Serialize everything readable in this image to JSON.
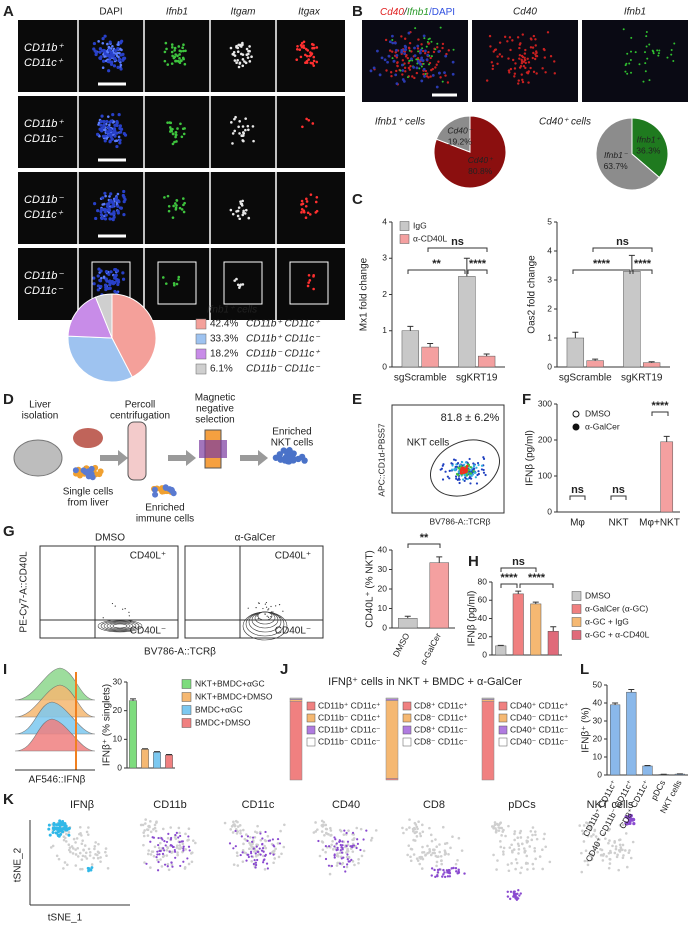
{
  "panel_labels": [
    "A",
    "B",
    "C",
    "D",
    "E",
    "F",
    "G",
    "H",
    "I",
    "J",
    "K",
    "L"
  ],
  "figA": {
    "channels": [
      "DAPI",
      "Ifnb1",
      "Itgam",
      "Itgax"
    ],
    "rows": [
      [
        "CD11b⁺",
        "CD11c⁺"
      ],
      [
        "CD11b⁺",
        "CD11c⁻"
      ],
      [
        "CD11b⁻",
        "CD11c⁺"
      ],
      [
        "CD11b⁻",
        "CD11c⁻"
      ]
    ]
  },
  "figB": {
    "merge": [
      "Cd40",
      "/",
      "Ifnb1",
      "/DAPI"
    ],
    "channels": [
      "Cd40",
      "Ifnb1"
    ]
  },
  "figD": {
    "steps": [
      [
        "Liver",
        "isolation"
      ],
      [
        "Percoll",
        "centrifugation"
      ],
      [
        "Magnetic",
        "negative",
        "selection"
      ],
      [
        "Enriched",
        "NKT cells"
      ]
    ],
    "notes": [
      [
        "Single cells",
        "from liver"
      ],
      [
        "Enriched",
        "immune cells"
      ]
    ]
  },
  "figE": {
    "percent": "81.8 ± 6.2%",
    "gate": "NKT cells",
    "ylabel": "APC::CD1d-PBS57",
    "xlabel": "BV786-A::TCRβ"
  },
  "figG": {
    "conditions": [
      "DMSO",
      "α-GalCer"
    ],
    "quadrants": [
      "CD40L⁺",
      "CD40L⁻"
    ],
    "ylabel": "PE-Cy7-A::CD40L",
    "xlabel": "BV786-A::TCRβ"
  },
  "figI": {
    "xlabel": "AF546::IFNβ"
  },
  "figK": {
    "titles": [
      "IFNβ",
      "CD11b",
      "CD11c",
      "CD40",
      "CD8",
      "pDCs",
      "NKT cells"
    ],
    "ylabel": "tSNE_2",
    "xlabel": "tSNE_1"
  },
  "chart_data": [
    {
      "type": "pie",
      "title": "Ifnb1⁺ cells",
      "categories": [
        "CD11b⁺ CD11c⁺",
        "CD11b⁺ CD11c⁻",
        "CD11b⁻ CD11c⁺",
        "CD11b⁻ CD11c⁻"
      ],
      "values": [
        42.4,
        33.3,
        18.2,
        6.1
      ],
      "value_labels": [
        "42.4%",
        "33.3%",
        "18.2%",
        "6.1%"
      ],
      "colors": [
        "#f4a09a",
        "#9ec3f0",
        "#c88ce8",
        "#cfcfcf"
      ],
      "legend": "right"
    },
    {
      "type": "pie",
      "title": "Ifnb1⁺ cells",
      "categories": [
        "Cd40⁺",
        "Cd40⁻"
      ],
      "values": [
        80.8,
        19.2
      ],
      "value_labels": [
        "80.8%",
        "19.2%"
      ],
      "colors": [
        "#8b0f0f",
        "#8c8c8c"
      ],
      "legend": "inside"
    },
    {
      "type": "pie",
      "title": "Cd40⁺ cells",
      "categories": [
        "Ifnb1⁺",
        "Ifnb1⁻"
      ],
      "values": [
        36.3,
        63.7
      ],
      "value_labels": [
        "36.3%",
        "63.7%"
      ],
      "colors": [
        "#1f7a1f",
        "#8c8c8c"
      ],
      "legend": "inside"
    },
    {
      "type": "bar",
      "ylabel": "Mx1 fold change",
      "categories": [
        "sgScramble",
        "sgKRT19"
      ],
      "series": [
        {
          "name": "IgG",
          "color": "#c8c8c8",
          "values": [
            1.0,
            2.5
          ],
          "errors": [
            0.12,
            0.5
          ]
        },
        {
          "name": "α-CD40L",
          "color": "#f4a0a0",
          "values": [
            0.55,
            0.3
          ],
          "errors": [
            0.1,
            0.06
          ]
        }
      ],
      "ylim": [
        0,
        4
      ],
      "yticks": [
        0,
        1,
        2,
        3,
        4
      ],
      "annotations": [
        "**",
        "****",
        "ns"
      ],
      "legend": "top-left"
    },
    {
      "type": "bar",
      "ylabel": "Oas2 fold change",
      "categories": [
        "sgScramble",
        "sgKRT19"
      ],
      "series": [
        {
          "name": "IgG",
          "color": "#c8c8c8",
          "values": [
            1.0,
            3.3
          ],
          "errors": [
            0.2,
            0.55
          ]
        },
        {
          "name": "α-CD40L",
          "color": "#f4a0a0",
          "values": [
            0.22,
            0.15
          ],
          "errors": [
            0.05,
            0.03
          ]
        }
      ],
      "ylim": [
        0,
        5
      ],
      "yticks": [
        0,
        1,
        2,
        3,
        4,
        5
      ],
      "annotations": [
        "****",
        "****",
        "ns"
      ]
    },
    {
      "type": "bar",
      "ylabel": "IFNβ (pg/ml)",
      "categories": [
        "Mφ",
        "NKT",
        "Mφ+NKT"
      ],
      "series": [
        {
          "name": "DMSO",
          "color": "#f4a0a0",
          "marker": "open",
          "values": [
            0,
            0,
            0
          ]
        },
        {
          "name": "α-GalCer",
          "color": "#f4a0a0",
          "marker": "filled",
          "values": [
            0,
            0,
            195
          ],
          "errors": [
            0,
            0,
            15
          ]
        }
      ],
      "ylim": [
        0,
        300
      ],
      "yticks": [
        0,
        100,
        200,
        300
      ],
      "annotations": [
        "ns",
        "ns",
        "****"
      ],
      "legend": "top-left"
    },
    {
      "type": "bar",
      "ylabel": "CD40L⁺ (% NKT)",
      "categories": [
        "DMSO",
        "α-GalCer"
      ],
      "values": [
        5,
        33.5
      ],
      "errors": [
        1,
        3
      ],
      "colors": [
        "#c8c8c8",
        "#f4a0a0"
      ],
      "ylim": [
        0,
        40
      ],
      "yticks": [
        0,
        10,
        20,
        30,
        40
      ],
      "annotations": [
        "**"
      ],
      "rotate_labels": true
    },
    {
      "type": "bar",
      "ylabel": "IFNβ (pg/ml)",
      "categories": [
        "DMSO",
        "α-GalCer (α-GC)",
        "α-GC + IgG",
        "α-GC + α-CD40L"
      ],
      "values": [
        10,
        67,
        56,
        26
      ],
      "errors": [
        0.5,
        3,
        2,
        5
      ],
      "colors": [
        "#c8c8c8",
        "#f08080",
        "#f5b872",
        "#e06a7a"
      ],
      "ylim": [
        0,
        80
      ],
      "yticks": [
        0,
        20,
        40,
        60,
        80
      ],
      "annotations": [
        "****",
        "****",
        "ns"
      ],
      "legend": "right"
    },
    {
      "type": "bar",
      "ylabel": "IFNβ⁺ (% singlets)",
      "categories": [
        "NKT+BMDC+αGC",
        "NKT+BMDC+DMSO",
        "BMDC+αGC",
        "BMDC+DMSO"
      ],
      "values": [
        23.5,
        6.5,
        5.5,
        4.5
      ],
      "errors": [
        0.6,
        0.2,
        0.2,
        0.2
      ],
      "colors": [
        "#7ddc7d",
        "#f5b872",
        "#7cc8f0",
        "#f08080"
      ],
      "ylim": [
        0,
        30
      ],
      "yticks": [
        0,
        10,
        20,
        30
      ],
      "legend": "right"
    },
    {
      "type": "stacked_bar",
      "title": "IFNβ⁺ cells in NKT + BMDC + α-GalCer",
      "groups": [
        {
          "names": [
            "CD11b⁺ CD11c⁺",
            "CD11b⁻ CD11c⁺",
            "CD11b⁺ CD11c⁻",
            "CD11b⁻ CD11c⁻"
          ],
          "colors": [
            "#f08080",
            "#f5b872",
            "#b07be0",
            "#ffffff"
          ],
          "values": [
            96,
            2,
            1,
            1
          ]
        },
        {
          "names": [
            "CD8⁺ CD11c⁺",
            "CD8⁻ CD11c⁺",
            "CD8⁺ CD11c⁻",
            "CD8⁻ CD11c⁻"
          ],
          "colors": [
            "#f08080",
            "#f5b872",
            "#b07be0",
            "#ffffff"
          ],
          "values": [
            2,
            95,
            2,
            1
          ]
        },
        {
          "names": [
            "CD40⁺ CD11c⁺",
            "CD40⁻ CD11c⁺",
            "CD40⁺ CD11c⁻",
            "CD40⁻ CD11c⁻"
          ],
          "colors": [
            "#f08080",
            "#f5b872",
            "#b07be0",
            "#ffffff"
          ],
          "values": [
            96,
            2,
            1,
            1
          ]
        }
      ]
    },
    {
      "type": "bar",
      "ylabel": "IFNβ⁺ (%)",
      "categories": [
        "CD11b⁺ CD11c⁺",
        "CD40⁺ CD11b⁻ CD11c⁺",
        "CD8⁺ CD11c⁺",
        "pDCs",
        "NKT cells"
      ],
      "values": [
        39,
        46,
        5,
        0.3,
        0.5
      ],
      "errors": [
        1,
        1.5,
        0.3,
        0.1,
        0.1
      ],
      "colors": [
        "#8ab8ea",
        "#8ab8ea",
        "#8ab8ea",
        "#8ab8ea",
        "#8ab8ea"
      ],
      "ylim": [
        0,
        50
      ],
      "yticks": [
        0,
        10,
        20,
        30,
        40,
        50
      ],
      "rotate_labels": true
    }
  ]
}
